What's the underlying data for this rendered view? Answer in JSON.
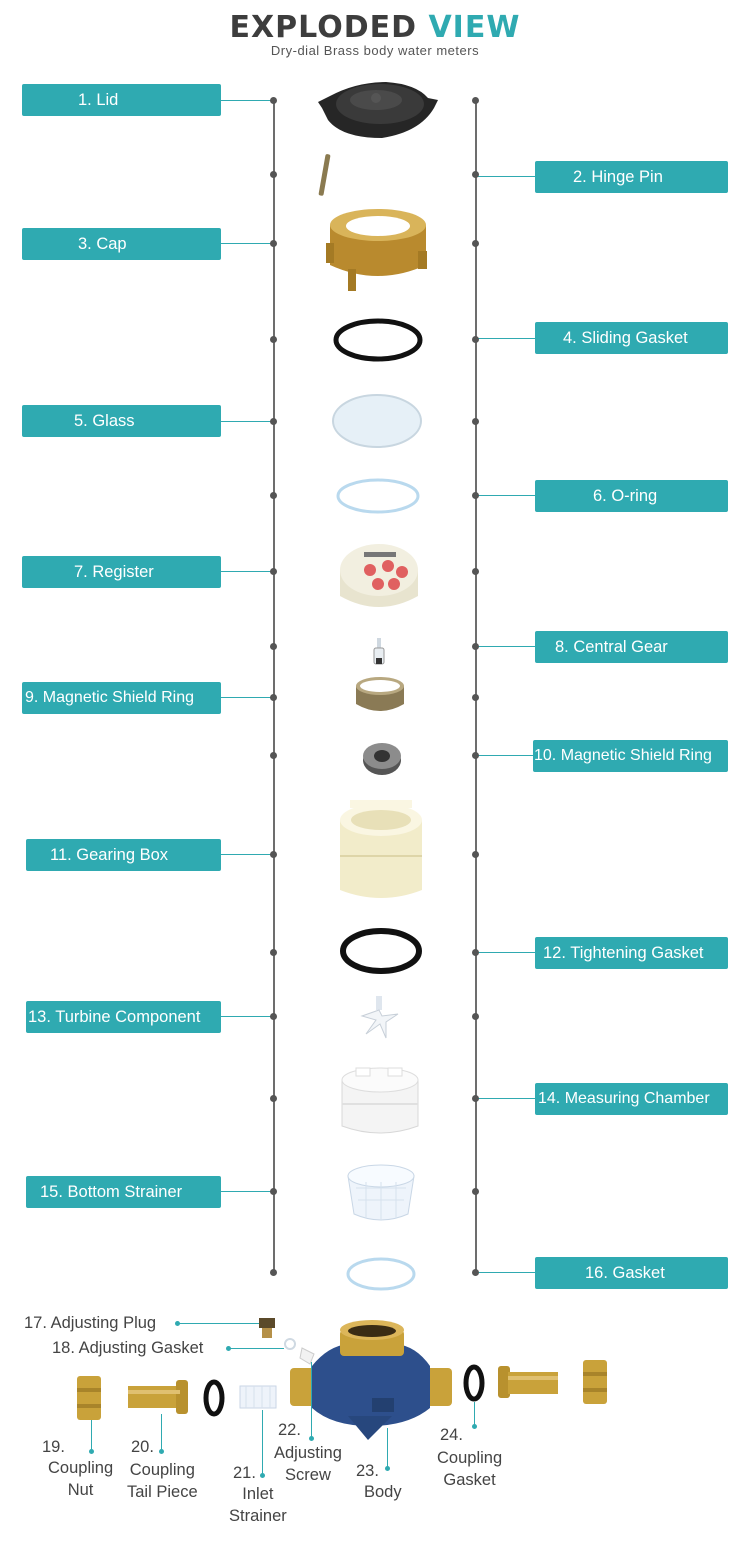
{
  "title_part1": "EXPLODED",
  "title_part2": "VIEW",
  "subtitle": "Dry-dial Brass body water meters",
  "left_labels": [
    "1.   Lid",
    "3.  Cap",
    "5. Glass",
    "7. Register",
    "9. Magnetic Shield Ring",
    "11. Gearing Box",
    "13. Turbine Component",
    "15. Bottom Strainer"
  ],
  "right_labels": [
    "2.  Hinge Pin",
    "4. Sliding Gasket",
    "6. O-ring",
    "8. Central Gear",
    "10. Magnetic Shield Ring",
    "12. Tightening Gasket",
    "14. Measuring Chamber",
    "16. Gasket"
  ],
  "bottom_labels": {
    "adjusting_plug": "17. Adjusting Plug",
    "adjusting_gasket": "18. Adjusting Gasket",
    "coupling_nut_num": "19.",
    "coupling_nut_name": "Coupling\nNut",
    "coupling_tail_num": "20.",
    "coupling_tail_name": "Coupling\nTail Piece",
    "inlet_strainer_num": "21.",
    "inlet_strainer_name": "Inlet\nStrainer",
    "adjusting_screw_num": "22.",
    "adjusting_screw_name": "Adjusting\nScrew",
    "body_num": "23.",
    "body_name": "Body",
    "coupling_gasket_num": "24.",
    "coupling_gasket_name": "Coupling\nGasket"
  },
  "colors": {
    "accent": "#2faab1",
    "title_dark": "#3d3d3d",
    "spine": "#6d6d6d",
    "brass": "#c9a23a",
    "meter_blue": "#2d4f8c"
  }
}
